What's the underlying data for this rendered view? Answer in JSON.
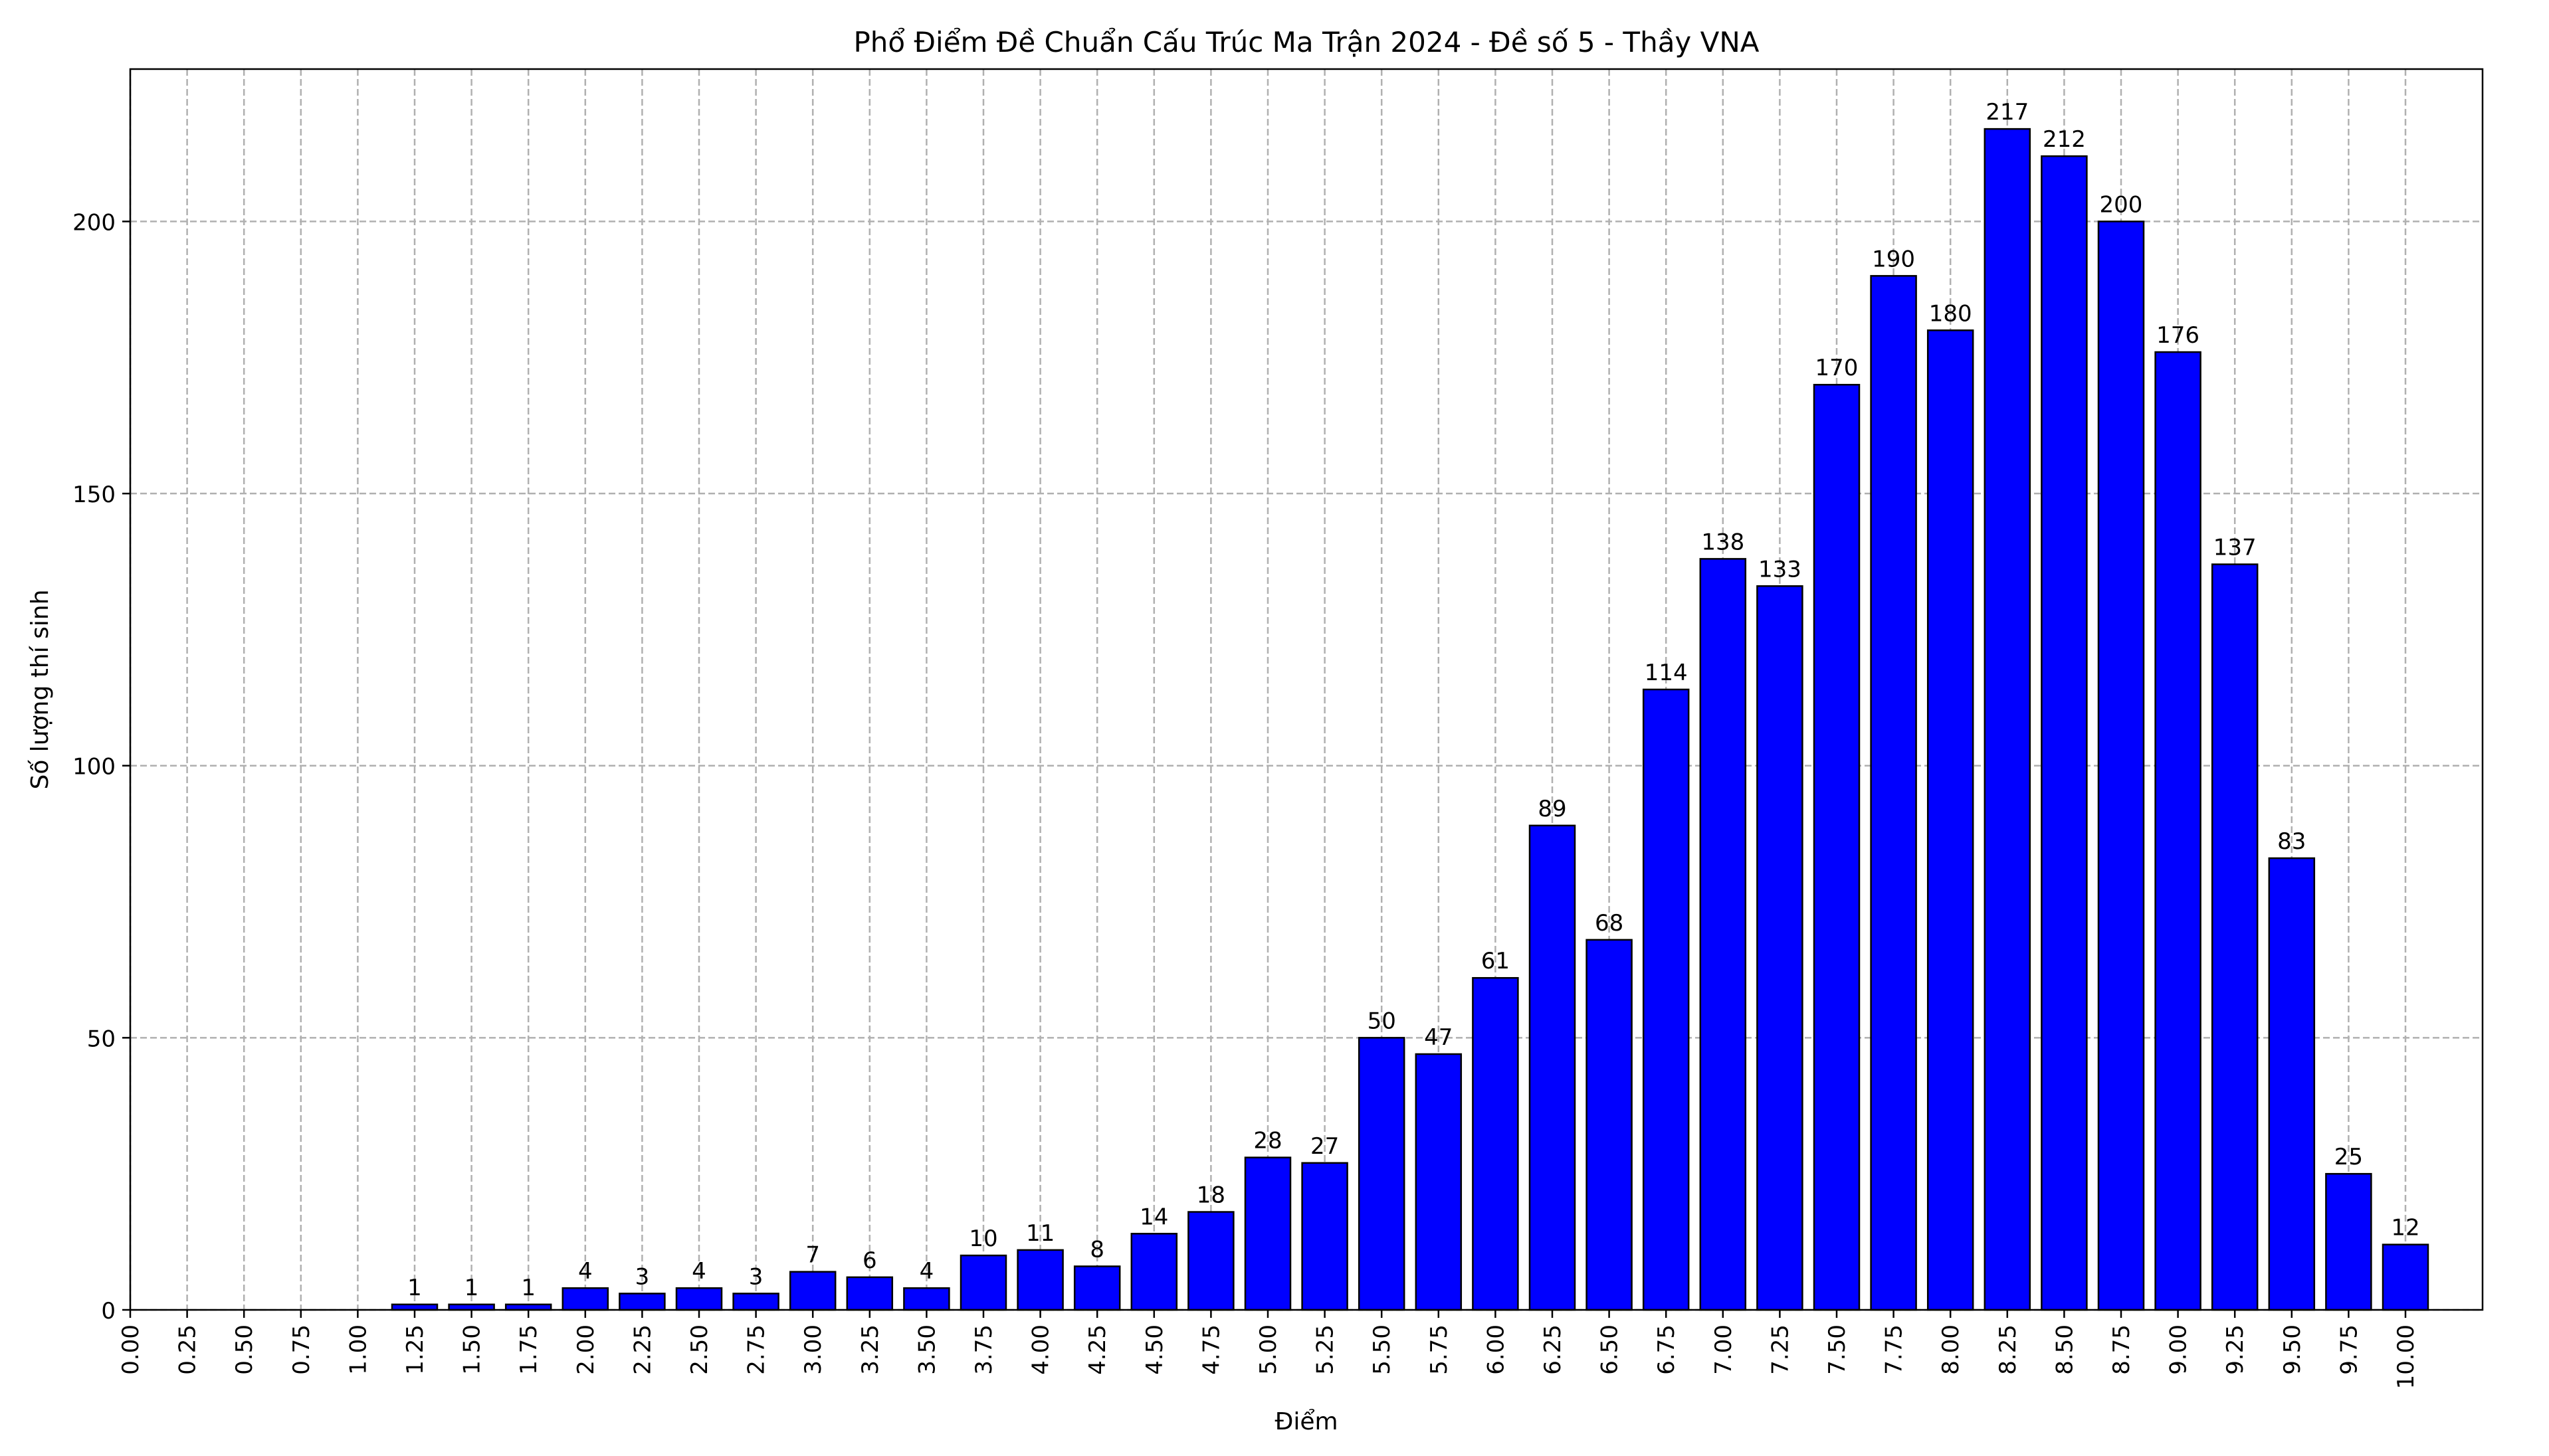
{
  "chart_data": {
    "type": "bar",
    "title": "Phổ Điểm Đề Chuẩn Cấu Trúc Ma Trận 2024 - Đề số 5 - Thầy VNA",
    "xlabel": "Điểm",
    "ylabel": "Số lượng thí sinh",
    "categories": [
      "0.00",
      "0.25",
      "0.50",
      "0.75",
      "1.00",
      "1.25",
      "1.50",
      "1.75",
      "2.00",
      "2.25",
      "2.50",
      "2.75",
      "3.00",
      "3.25",
      "3.50",
      "3.75",
      "4.00",
      "4.25",
      "4.50",
      "4.75",
      "5.00",
      "5.25",
      "5.50",
      "5.75",
      "6.00",
      "6.25",
      "6.50",
      "6.75",
      "7.00",
      "7.25",
      "7.50",
      "7.75",
      "8.00",
      "8.25",
      "8.50",
      "8.75",
      "9.00",
      "9.25",
      "9.50",
      "9.75",
      "10.00"
    ],
    "values": [
      0,
      0,
      0,
      0,
      0,
      1,
      1,
      1,
      4,
      3,
      4,
      3,
      7,
      6,
      4,
      10,
      11,
      8,
      14,
      18,
      28,
      27,
      50,
      47,
      61,
      89,
      68,
      114,
      138,
      133,
      170,
      190,
      180,
      217,
      212,
      200,
      176,
      137,
      83,
      25,
      12
    ],
    "yticks": [
      0,
      50,
      100,
      150,
      200
    ],
    "ylim": [
      0,
      228
    ],
    "grid": true,
    "colors": {
      "bar": "#0000ff",
      "edge": "#000000",
      "grid": "#b0b0b0"
    }
  }
}
